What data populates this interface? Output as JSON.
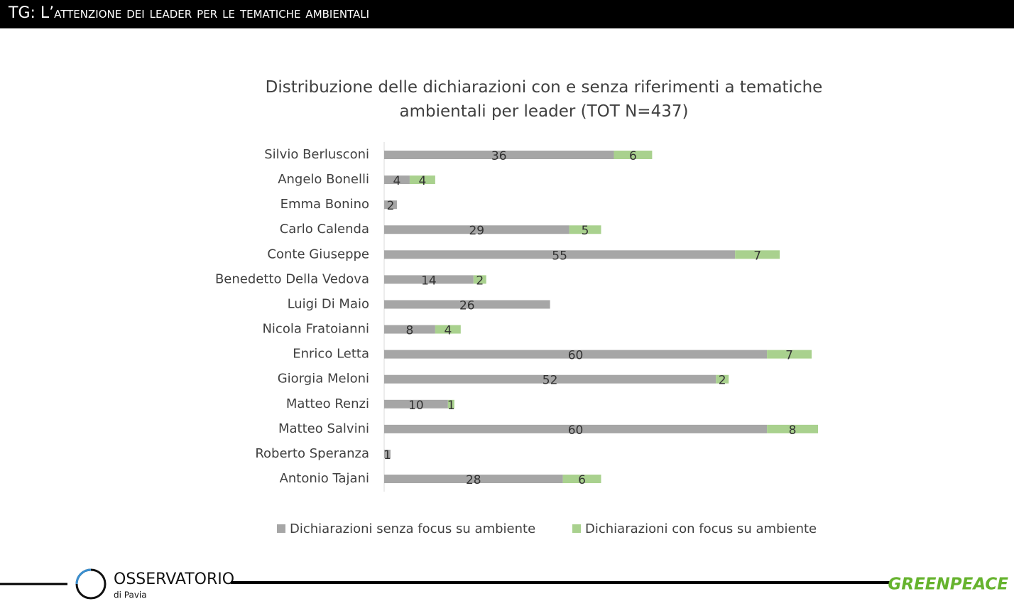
{
  "header": {
    "title": "TG: L’attenzione dei leader per le tematiche ambientali"
  },
  "chart_data": {
    "type": "stacked-bar-horizontal",
    "title": "Distribuzione delle dichiarazioni con e senza riferimenti a tematiche ambientali per leader (TOT N=437)",
    "categories": [
      "Silvio Berlusconi",
      "Angelo Bonelli",
      "Emma Bonino",
      "Carlo Calenda",
      "Conte Giuseppe",
      "Benedetto Della Vedova",
      "Luigi Di Maio",
      "Nicola Fratoianni",
      "Enrico Letta",
      "Giorgia Meloni",
      "Matteo Renzi",
      "Matteo Salvini",
      "Roberto Speranza",
      "Antonio Tajani"
    ],
    "series": [
      {
        "name": "Dichiarazioni senza focus su ambiente",
        "color": "#a6a6a6",
        "values": [
          36,
          4,
          2,
          29,
          55,
          14,
          26,
          8,
          60,
          52,
          10,
          60,
          1,
          28
        ]
      },
      {
        "name": "Dichiarazioni con focus su ambiente",
        "color": "#a9d18e",
        "values": [
          6,
          4,
          null,
          5,
          7,
          2,
          null,
          4,
          7,
          2,
          1,
          8,
          null,
          6
        ]
      }
    ],
    "legend": "bottom"
  },
  "footer": {
    "logo": "OSSERVATORIO",
    "logo_sub": "di Pavia",
    "brand": "GREENPEACE"
  }
}
